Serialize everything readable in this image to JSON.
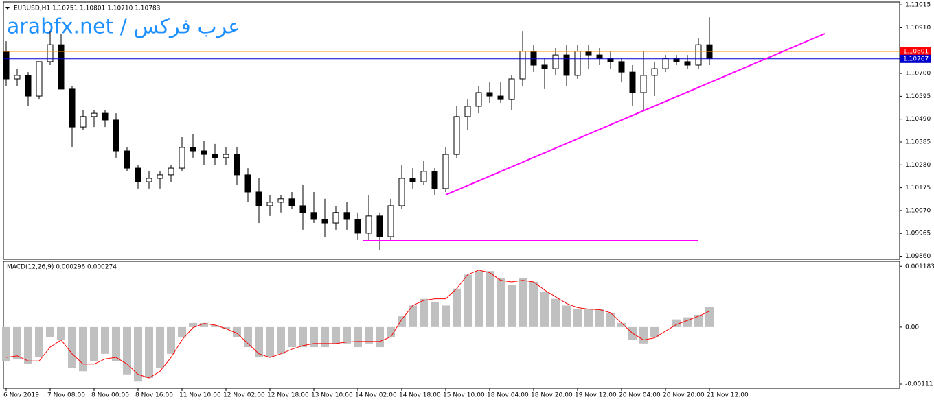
{
  "chart_data": [
    {
      "type": "candlestick",
      "title": "EURUSD,H1  1.10751 1.10801 1.10710 1.10783",
      "watermark": "arabfx.net / عرب فركس",
      "categories": [
        "6 Nov 2019",
        null,
        null,
        null,
        "7 Nov 08:00",
        null,
        null,
        null,
        "8 Nov 00:00",
        null,
        null,
        null,
        "8 Nov 16:00",
        null,
        null,
        null,
        "11 Nov 10:00",
        null,
        null,
        null,
        "12 Nov 02:00",
        null,
        null,
        null,
        "12 Nov 18:00",
        null,
        null,
        null,
        "13 Nov 10:00",
        null,
        null,
        null,
        "14 Nov 02:00",
        null,
        null,
        null,
        "14 Nov 18:00",
        null,
        null,
        null,
        "15 Nov 10:00",
        null,
        null,
        null,
        "18 Nov 04:00",
        null,
        null,
        null,
        "18 Nov 20:00",
        null,
        null,
        null,
        "19 Nov 12:00",
        null,
        null,
        null,
        "20 Nov 04:00",
        null,
        null,
        null,
        "20 Nov 20:00",
        null,
        null,
        null,
        "21 Nov 12:00"
      ],
      "open": [
        1.10801,
        1.10675,
        1.10691,
        1.10596,
        1.10754,
        1.10832,
        1.10628,
        1.10454,
        1.10502,
        1.10517,
        1.10486,
        1.10344,
        1.10265,
        1.10202,
        1.10218,
        1.10234,
        1.10265,
        1.1036,
        1.10344,
        1.10328,
        1.10313,
        1.10328,
        1.10234,
        1.10155,
        1.10092,
        1.10108,
        1.10124,
        1.10092,
        1.10061,
        1.10029,
        1.10013,
        1.10061,
        1.10029,
        1.09966,
        1.10045,
        1.0995,
        1.10092,
        1.10218,
        1.10202,
        1.1025,
        1.10171,
        1.10328,
        1.10502,
        1.10549,
        1.10612,
        1.10596,
        1.1058,
        1.10675,
        1.10801,
        1.10738,
        1.10722,
        1.10785,
        1.10691,
        1.10801,
        1.10785,
        1.10769,
        1.10754,
        1.10706,
        1.10612,
        1.10691,
        1.10722,
        1.10769,
        1.10754,
        1.10738,
        1.10832
      ],
      "high": [
        1.10848,
        1.10722,
        1.10706,
        1.10754,
        1.10895,
        1.1088,
        1.10643,
        1.10533,
        1.10533,
        1.10533,
        1.10517,
        1.1036,
        1.10281,
        1.1025,
        1.1025,
        1.10281,
        1.10407,
        1.10423,
        1.10391,
        1.10376,
        1.1036,
        1.1036,
        1.10265,
        1.10218,
        1.10139,
        1.10139,
        1.10155,
        1.10187,
        1.10155,
        1.10124,
        1.10092,
        1.10108,
        1.10061,
        1.10139,
        1.10061,
        1.10124,
        1.10281,
        1.10265,
        1.10297,
        1.10265,
        1.1036,
        1.10549,
        1.1058,
        1.10643,
        1.10659,
        1.10659,
        1.10691,
        1.10895,
        1.10832,
        1.10769,
        1.10817,
        1.10832,
        1.10832,
        1.10832,
        1.10817,
        1.10801,
        1.10769,
        1.10738,
        1.10801,
        1.10754,
        1.10785,
        1.10785,
        1.10785,
        1.10864,
        1.10958
      ],
      "low": [
        1.10643,
        1.10643,
        1.10549,
        1.1058,
        1.10738,
        1.10628,
        1.1036,
        1.10439,
        1.10454,
        1.10454,
        1.10313,
        1.1025,
        1.10171,
        1.10171,
        1.10171,
        1.10202,
        1.1025,
        1.10313,
        1.10281,
        1.10281,
        1.10281,
        1.10187,
        1.10108,
        1.10013,
        1.10045,
        1.10061,
        1.10076,
        1.09982,
        1.10013,
        1.0995,
        1.09982,
        1.09982,
        1.09934,
        1.09934,
        1.09887,
        1.09934,
        1.10076,
        1.10171,
        1.10187,
        1.10139,
        1.10155,
        1.10313,
        1.10439,
        1.10517,
        1.10565,
        1.10565,
        1.10533,
        1.10643,
        1.10706,
        1.10628,
        1.10691,
        1.10643,
        1.10675,
        1.10722,
        1.10738,
        1.10722,
        1.10659,
        1.10549,
        1.10533,
        1.10596,
        1.10706,
        1.10738,
        1.10722,
        1.10722,
        1.10738
      ],
      "close": [
        1.10675,
        1.10691,
        1.10596,
        1.10754,
        1.10832,
        1.10628,
        1.10454,
        1.10502,
        1.10517,
        1.10486,
        1.10344,
        1.10265,
        1.10202,
        1.10218,
        1.10234,
        1.10265,
        1.1036,
        1.10344,
        1.10328,
        1.10313,
        1.10328,
        1.10234,
        1.10155,
        1.10092,
        1.10108,
        1.10124,
        1.10092,
        1.10061,
        1.10029,
        1.10013,
        1.10061,
        1.10029,
        1.09966,
        1.10045,
        1.0995,
        1.10092,
        1.10218,
        1.10202,
        1.1025,
        1.10171,
        1.10328,
        1.10502,
        1.10549,
        1.10612,
        1.10596,
        1.1058,
        1.10675,
        1.10801,
        1.10738,
        1.10722,
        1.10785,
        1.10691,
        1.10801,
        1.10785,
        1.10769,
        1.10754,
        1.10706,
        1.10612,
        1.10691,
        1.10722,
        1.10769,
        1.10754,
        1.10738,
        1.10832,
        1.10769
      ],
      "ylim": [
        1.09846,
        1.11028
      ],
      "yticks": [
        1.11015,
        {
          "value": 1.1091,
          "label": "1.10910"
        },
        {
          "value": 1.107,
          "label": "1.10700"
        },
        1.10595,
        {
          "value": 1.1049,
          "label": "1.10490"
        },
        1.10385,
        {
          "value": 1.1028,
          "label": "1.10280"
        },
        1.10175,
        {
          "value": 1.1007,
          "label": "1.10070"
        },
        1.09965,
        {
          "value": 1.0986,
          "label": "1.09860"
        }
      ],
      "levels": [
        {
          "value": 1.10801,
          "color": "#ff8c00",
          "box": "#ff0000"
        },
        {
          "value": 1.10767,
          "color": "#0000cd",
          "box": "#0000cd"
        }
      ],
      "lines": [
        {
          "color": "#ff00ff",
          "x": [
            40,
            74.5
          ],
          "y": [
            1.10142,
            1.10883
          ]
        },
        {
          "color": "#ff00ff",
          "x": [
            32.5,
            63
          ],
          "y": [
            1.09931,
            1.09931
          ]
        }
      ]
    },
    {
      "type": "macd",
      "title": "MACD(12,26,9) 0.000296 0.000274",
      "ylim": [
        -0.00119,
        0.00128
      ],
      "yticks": [
        0.001183,
        {
          "value": 0,
          "label": "0.00"
        },
        -0.00111
      ],
      "series": [
        {
          "kind": "histogram",
          "color": "#c0c0c0",
          "values": [
            -0.00066,
            -0.00062,
            -0.00072,
            -0.00059,
            -0.00019,
            -0.00025,
            -0.00079,
            -0.00086,
            -0.00066,
            -0.00052,
            -0.00066,
            -0.00092,
            -0.00106,
            -0.00099,
            -0.00079,
            -0.00052,
            -0.00019,
            8e-05,
            8e-05,
            4e-05,
            -3e-05,
            -0.00019,
            -0.00039,
            -0.00059,
            -0.00059,
            -0.00052,
            -0.00039,
            -0.00039,
            -0.00039,
            -0.00039,
            -0.00032,
            -0.00032,
            -0.00039,
            -0.00032,
            -0.00039,
            -0.00019,
            0.00021,
            0.00042,
            0.00055,
            0.00048,
            0.00042,
            0.00075,
            0.00102,
            0.00109,
            0.00109,
            0.00095,
            0.00082,
            0.00095,
            0.00088,
            0.00068,
            0.00055,
            0.00042,
            0.00035,
            0.00035,
            0.00035,
            0.00028,
            8e-05,
            -0.00025,
            -0.00032,
            -0.00019,
            0,
            0.00015,
            0.00019,
            0.00024,
            0.00039
          ]
        },
        {
          "kind": "line",
          "color": "#ff0000",
          "values": [
            -0.00059,
            -0.00056,
            -0.00066,
            -0.00066,
            -0.00039,
            -0.00025,
            -0.00052,
            -0.00072,
            -0.00072,
            -0.00062,
            -0.00059,
            -0.00072,
            -0.00092,
            -0.00099,
            -0.00086,
            -0.00059,
            -0.00025,
            -1e-05,
            7e-05,
            4e-05,
            -3e-05,
            -0.00012,
            -0.00032,
            -0.00052,
            -0.00059,
            -0.00052,
            -0.00043,
            -0.00036,
            -0.00032,
            -0.00032,
            -0.00032,
            -0.00029,
            -0.00028,
            -0.00028,
            -0.00028,
            -0.00019,
            0.00015,
            0.00042,
            0.00052,
            0.00055,
            0.00055,
            0.00075,
            0.00102,
            0.00111,
            0.00106,
            0.00091,
            0.00088,
            0.00091,
            0.00088,
            0.00072,
            0.00059,
            0.00046,
            0.00038,
            0.00035,
            0.00034,
            0.00028,
            8e-05,
            -0.00012,
            -0.00025,
            -0.00021,
            -8e-05,
            5e-05,
            0.00013,
            0.00021,
            0.00031
          ]
        }
      ]
    }
  ]
}
